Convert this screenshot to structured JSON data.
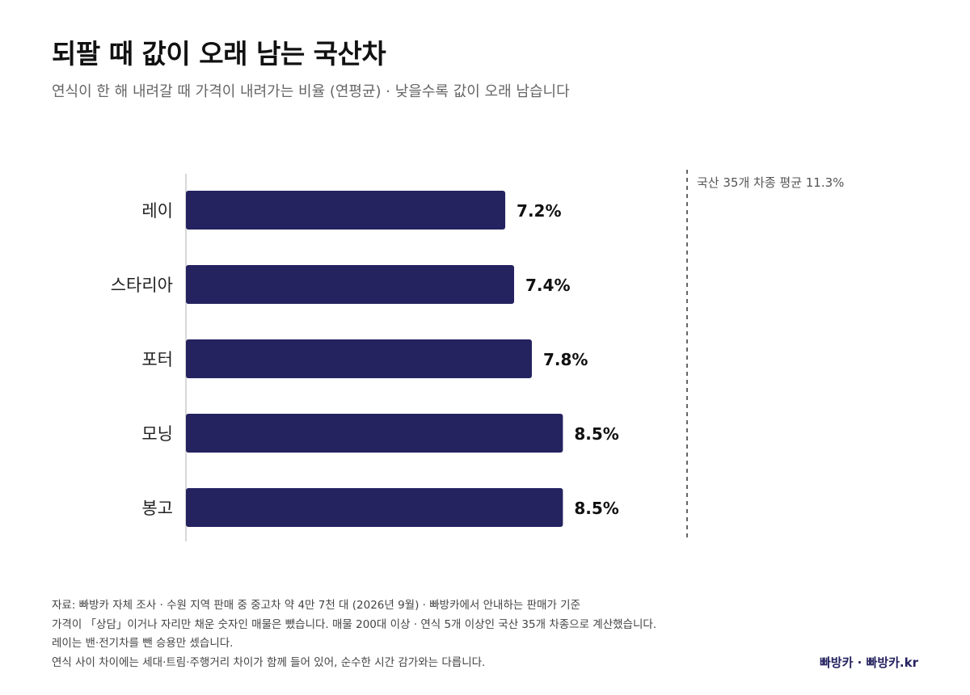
{
  "chart_data": {
    "type": "bar",
    "orientation": "horizontal",
    "title": "되팔 때 값이 오래 남는 국산차",
    "subtitle": "연식이 한 해 내려갈 때 가격이 내려가는 비율 (연평균) · 낮을수록 값이 오래 남습니다",
    "categories": [
      "레이",
      "스타리아",
      "포터",
      "모닝",
      "봉고"
    ],
    "values": [
      7.2,
      7.4,
      7.8,
      8.5,
      8.5
    ],
    "value_labels": [
      "7.2%",
      "7.4%",
      "7.8%",
      "8.5%",
      "8.5%"
    ],
    "xlim": [
      0,
      11.3
    ],
    "reference_line": {
      "value": 11.3,
      "label": "국산 35개 차종 평균 11.3%",
      "style": "dashed"
    },
    "grid": false,
    "legend": "none",
    "bar_color": "#24225f"
  },
  "footer": {
    "lines": [
      "자료: 빠방카 자체 조사 · 수원 지역 판매 중 중고차 약 4만 7천 대 (2026년 9월) · 빠방카에서 안내하는 판매가 기준",
      "가격이 「상담」이거나 자리만 채운 숫자인 매물은 뺐습니다. 매물 200대 이상 · 연식 5개 이상인 국산 35개 차종으로 계산했습니다.",
      "레이는 밴·전기차를 뺀 승용만 셌습니다.",
      "연식 사이 차이에는 세대·트림·주행거리 차이가 함께 들어 있어, 순수한 시간 감가와는 다릅니다."
    ],
    "brand": "빠방카 · 빠방카.kr"
  }
}
